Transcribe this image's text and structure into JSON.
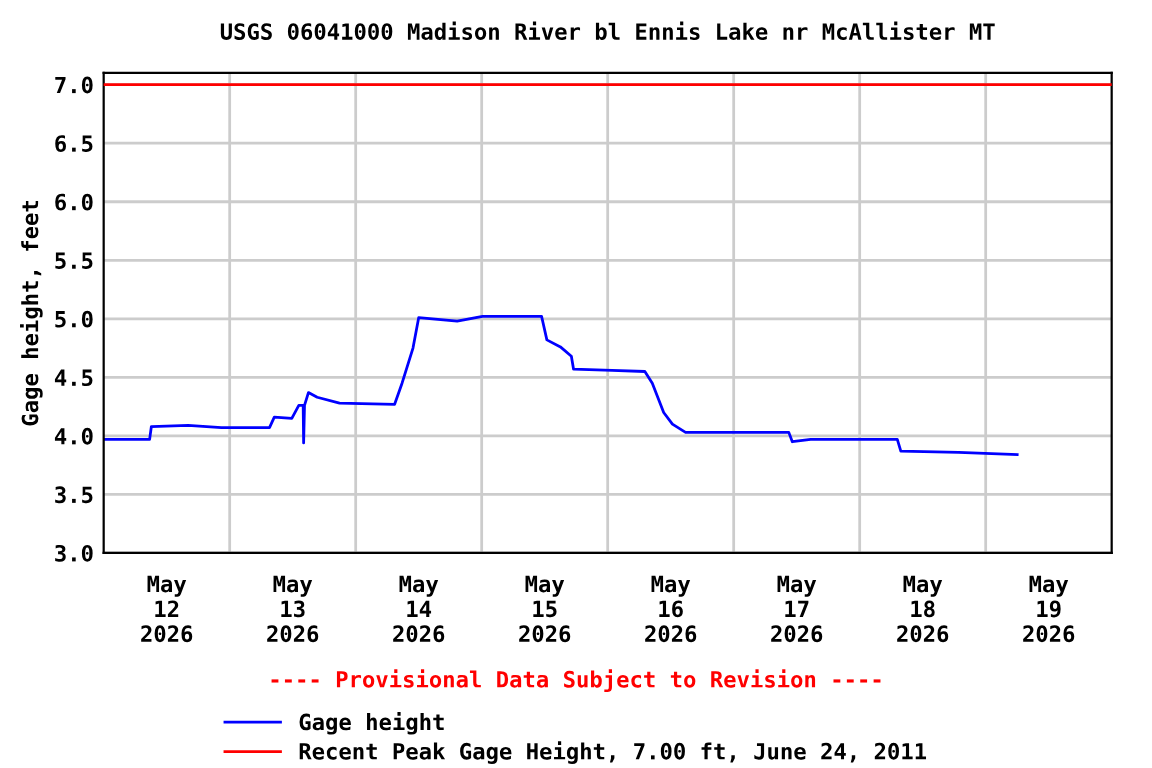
{
  "chart_data": {
    "type": "line",
    "title": "USGS 06041000 Madison River bl Ennis Lake nr McAllister MT",
    "ylabel": "Gage height, feet",
    "x": [
      "2026-05-12T00:00",
      "2026-05-12T08:45",
      "2026-05-12T09:05",
      "2026-05-12T16:05",
      "2026-05-12T22:25",
      "2026-05-13T07:35",
      "2026-05-13T08:30",
      "2026-05-13T11:50",
      "2026-05-13T13:10",
      "2026-05-13T14:00",
      "2026-05-13T14:05",
      "2026-05-13T14:15",
      "2026-05-13T15:00",
      "2026-05-13T16:40",
      "2026-05-13T20:55",
      "2026-05-14T07:25",
      "2026-05-14T08:50",
      "2026-05-14T10:55",
      "2026-05-14T12:00",
      "2026-05-14T19:20",
      "2026-05-15T00:10",
      "2026-05-15T11:25",
      "2026-05-15T12:25",
      "2026-05-15T15:00",
      "2026-05-15T17:05",
      "2026-05-15T17:30",
      "2026-05-16T00:50",
      "2026-05-16T07:05",
      "2026-05-16T08:30",
      "2026-05-16T10:40",
      "2026-05-16T12:20",
      "2026-05-16T14:50",
      "2026-05-17T00:35",
      "2026-05-17T10:30",
      "2026-05-17T11:10",
      "2026-05-17T14:40",
      "2026-05-18T07:10",
      "2026-05-18T07:50",
      "2026-05-18T18:50",
      "2026-05-19T06:00"
    ],
    "series": [
      {
        "name": "Gage height",
        "color": "#0000ff",
        "values": [
          3.97,
          3.97,
          4.08,
          4.09,
          4.07,
          4.07,
          4.16,
          4.15,
          4.26,
          4.26,
          3.94,
          4.26,
          4.37,
          4.33,
          4.28,
          4.27,
          4.45,
          4.75,
          5.01,
          4.98,
          5.02,
          5.02,
          4.82,
          4.76,
          4.68,
          4.57,
          4.56,
          4.55,
          4.45,
          4.2,
          4.1,
          4.03,
          4.03,
          4.03,
          3.95,
          3.97,
          3.97,
          3.87,
          3.86,
          3.84
        ]
      }
    ],
    "xlim": [
      "2026-05-12T00:00",
      "2026-05-20T00:00"
    ],
    "xticks": [
      {
        "value": "2026-05-12T12:00",
        "label": "May\n12\n2026"
      },
      {
        "value": "2026-05-13T12:00",
        "label": "May\n13\n2026"
      },
      {
        "value": "2026-05-14T12:00",
        "label": "May\n14\n2026"
      },
      {
        "value": "2026-05-15T12:00",
        "label": "May\n15\n2026"
      },
      {
        "value": "2026-05-16T12:00",
        "label": "May\n16\n2026"
      },
      {
        "value": "2026-05-17T12:00",
        "label": "May\n17\n2026"
      },
      {
        "value": "2026-05-18T12:00",
        "label": "May\n18\n2026"
      },
      {
        "value": "2026-05-19T12:00",
        "label": "May\n19\n2026"
      },
      {
        "value": "2026-05-13T00:00",
        "label": null
      },
      {
        "value": "2026-05-14T00:00",
        "label": null
      },
      {
        "value": "2026-05-15T00:00",
        "label": null
      },
      {
        "value": "2026-05-16T00:00",
        "label": null
      },
      {
        "value": "2026-05-17T00:00",
        "label": null
      },
      {
        "value": "2026-05-18T00:00",
        "label": null
      },
      {
        "value": "2026-05-19T00:00",
        "label": null
      }
    ],
    "ylim": [
      3.0,
      7.1
    ],
    "yticks": [
      {
        "value": 3.0,
        "label": "3.0"
      },
      3.5,
      {
        "value": 4.0,
        "label": "4.0"
      },
      4.5,
      {
        "value": 5.0,
        "label": "5.0"
      },
      5.5,
      {
        "value": 6.0,
        "label": "6.0"
      },
      6.5,
      {
        "value": 7.0,
        "label": "7.0"
      }
    ],
    "grid": true,
    "ref_lines": [
      {
        "axis": "y",
        "value": 7.0,
        "label": "Recent Peak Gage Height, 7.00 ft, June 24, 2011",
        "color": "#ff0000"
      }
    ],
    "annotations": [
      "---- Provisional Data Subject to Revision ----"
    ],
    "legend": "bottom"
  }
}
